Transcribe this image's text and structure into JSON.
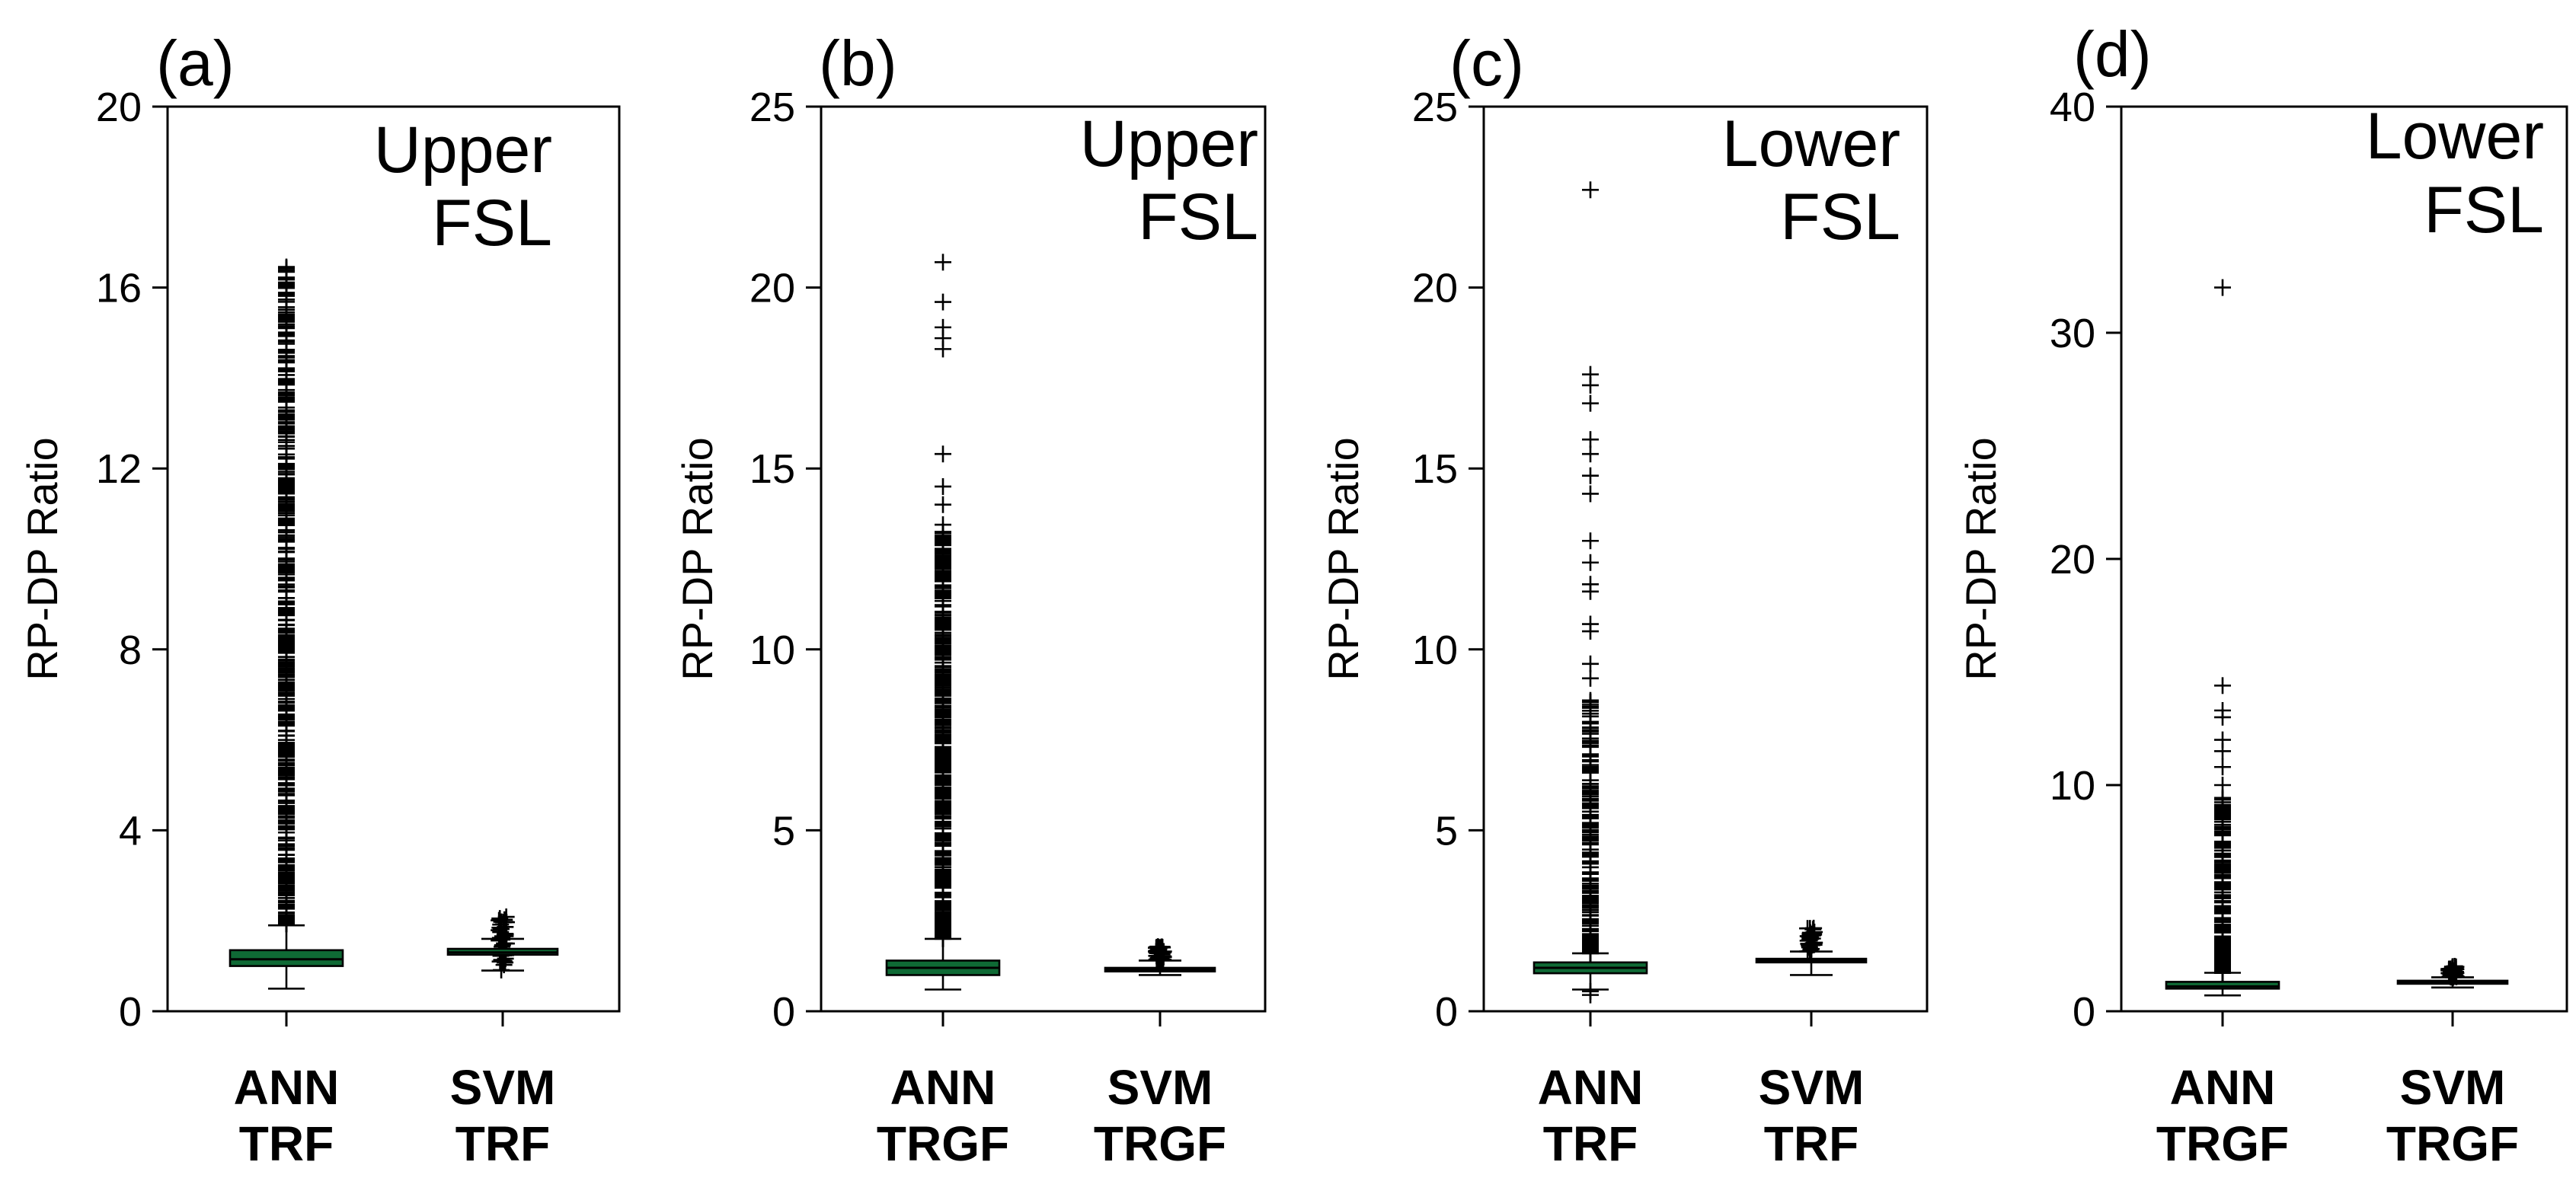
{
  "colors": {
    "box_fill": "#0f6a35",
    "axis": "#000000",
    "outlier": "#000000",
    "background": "#ffffff"
  },
  "chart_data": [
    {
      "type": "box",
      "panel_label": "(a)",
      "annotation": [
        "Upper",
        "FSL"
      ],
      "ylabel": "RP-DP Ratio",
      "ylim": [
        0,
        20
      ],
      "yticks": [
        0,
        4,
        8,
        12,
        16,
        20
      ],
      "categories": [
        [
          "ANN",
          "TRF"
        ],
        [
          "SVM",
          "TRF"
        ]
      ],
      "boxes": [
        {
          "whisker_low": 0.5,
          "q1": 1.0,
          "median": 1.15,
          "q3": 1.35,
          "whisker_high": 1.9,
          "outlier_range": [
            1.9,
            16.5
          ],
          "outlier_density": "dense",
          "style": "filled"
        },
        {
          "whisker_low": 0.9,
          "q1": 1.25,
          "median": 1.3,
          "q3": 1.38,
          "whisker_high": 1.6,
          "outlier_range": [
            0.9,
            2.1
          ],
          "outlier_density": "cluster",
          "style": "line"
        }
      ]
    },
    {
      "type": "box",
      "panel_label": "(b)",
      "annotation": [
        "Upper",
        "FSL"
      ],
      "ylabel": "RP-DP Ratio",
      "ylim": [
        0,
        25
      ],
      "yticks": [
        0,
        5,
        10,
        15,
        20,
        25
      ],
      "categories": [
        [
          "ANN",
          "TRGF"
        ],
        [
          "SVM",
          "TRGF"
        ]
      ],
      "boxes": [
        {
          "whisker_low": 0.6,
          "q1": 1.0,
          "median": 1.2,
          "q3": 1.4,
          "whisker_high": 2.0,
          "outlier_range": [
            2.0,
            13.5
          ],
          "outlier_density": "dense",
          "extra_outliers": [
            14.0,
            14.5,
            15.4,
            18.3,
            18.6,
            18.9,
            19.6,
            20.7
          ],
          "style": "filled"
        },
        {
          "whisker_low": 1.0,
          "q1": 1.1,
          "median": 1.15,
          "q3": 1.2,
          "whisker_high": 1.4,
          "outlier_range": [
            1.4,
            1.8
          ],
          "outlier_density": "cluster",
          "style": "line"
        }
      ]
    },
    {
      "type": "box",
      "panel_label": "(c)",
      "annotation": [
        "Lower",
        "FSL"
      ],
      "ylabel": "RP-DP Ratio",
      "ylim": [
        0,
        25
      ],
      "yticks": [
        0,
        5,
        10,
        15,
        20,
        25
      ],
      "categories": [
        [
          "ANN",
          "TRF"
        ],
        [
          "SVM",
          "TRF"
        ]
      ],
      "boxes": [
        {
          "whisker_low": 0.6,
          "q1": 1.05,
          "median": 1.2,
          "q3": 1.35,
          "whisker_high": 1.6,
          "outlier_range": [
            1.6,
            8.6
          ],
          "outlier_density": "medium",
          "extra_outliers": [
            0.45,
            0.55,
            9.2,
            9.6,
            10.5,
            10.7,
            11.6,
            11.8,
            12.4,
            13.0,
            14.3,
            14.8,
            15.4,
            15.8,
            16.8,
            17.3,
            17.6,
            22.7
          ],
          "style": "filled"
        },
        {
          "whisker_low": 1.0,
          "q1": 1.35,
          "median": 1.4,
          "q3": 1.45,
          "whisker_high": 1.65,
          "outlier_range": [
            1.65,
            2.3
          ],
          "outlier_density": "cluster",
          "style": "line"
        }
      ]
    },
    {
      "type": "box",
      "panel_label": "(d)",
      "annotation": [
        "Lower",
        "FSL"
      ],
      "ylabel": "RP-DP Ratio",
      "ylim": [
        0,
        40
      ],
      "yticks": [
        0,
        10,
        20,
        30,
        40
      ],
      "categories": [
        [
          "ANN",
          "TRGF"
        ],
        [
          "SVM",
          "TRGF"
        ]
      ],
      "boxes": [
        {
          "whisker_low": 0.7,
          "q1": 1.0,
          "median": 1.1,
          "q3": 1.3,
          "whisker_high": 1.7,
          "outlier_range": [
            1.7,
            9.5
          ],
          "outlier_density": "medium",
          "extra_outliers": [
            10.0,
            10.8,
            11.5,
            12.0,
            13.0,
            13.3,
            14.4,
            32.0
          ],
          "style": "filled"
        },
        {
          "whisker_low": 1.05,
          "q1": 1.25,
          "median": 1.3,
          "q3": 1.35,
          "whisker_high": 1.5,
          "outlier_range": [
            1.5,
            2.0
          ],
          "outlier_density": "cluster",
          "style": "line"
        }
      ]
    }
  ]
}
